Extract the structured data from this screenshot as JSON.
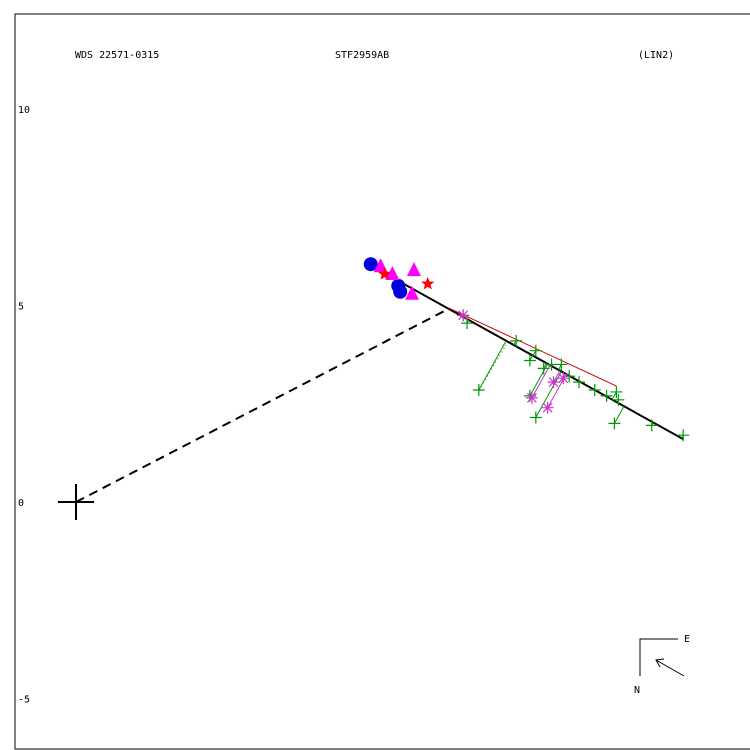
{
  "header": {
    "wds_id": "WDS 22571-0315",
    "discoverer": "STF2959AB",
    "fit": "(LIN2)"
  },
  "compass": {
    "east": "E",
    "north": "N"
  },
  "chart_data": {
    "type": "scatter",
    "title": "",
    "xlabel": "",
    "ylabel": "",
    "ylim": [
      -6.2,
      12.4
    ],
    "xlim": [
      -1.5,
      17.1
    ],
    "yticks": [
      {
        "value": 10,
        "label": "10"
      },
      {
        "value": 5,
        "label": "5"
      },
      {
        "value": 0,
        "label": "0"
      },
      {
        "value": -5,
        "label": "-5"
      }
    ],
    "primary": {
      "x": 0,
      "y": 0
    },
    "fit_line": {
      "x1": 7.35,
      "y1": 6.1,
      "x2": 15.45,
      "y2": 1.6
    },
    "closest_approach": {
      "x": 9.45,
      "y": 4.9
    },
    "series": [
      {
        "marker": "plus",
        "color": "#009900",
        "points": [
          [
            9.85,
            4.75
          ],
          [
            9.95,
            4.55
          ],
          [
            11.2,
            4.1
          ],
          [
            11.55,
            3.6
          ],
          [
            11.7,
            3.85
          ],
          [
            11.9,
            3.4
          ],
          [
            12.1,
            3.5
          ],
          [
            12.35,
            3.5
          ],
          [
            12.55,
            3.2
          ],
          [
            12.8,
            3.05
          ],
          [
            13.2,
            2.85
          ],
          [
            13.5,
            2.7
          ],
          [
            13.75,
            2.8
          ],
          [
            13.8,
            2.6
          ],
          [
            11.55,
            2.7
          ],
          [
            11.7,
            2.15
          ],
          [
            10.25,
            2.85
          ],
          [
            13.7,
            2.0
          ],
          [
            14.65,
            1.95
          ],
          [
            15.45,
            1.7
          ]
        ]
      },
      {
        "marker": "asterisk",
        "color": "#cc33cc",
        "points": [
          [
            9.85,
            4.75
          ],
          [
            11.6,
            2.65
          ],
          [
            12.0,
            2.4
          ],
          [
            12.15,
            3.05
          ],
          [
            12.4,
            3.15
          ]
        ]
      },
      {
        "marker": "circle",
        "color": "#0000dd",
        "points": [
          [
            7.5,
            6.05
          ],
          [
            8.2,
            5.5
          ],
          [
            8.25,
            5.35
          ]
        ]
      },
      {
        "marker": "triangle",
        "color": "#ff00ff",
        "points": [
          [
            7.75,
            6.0
          ],
          [
            8.05,
            5.8
          ],
          [
            8.6,
            5.9
          ],
          [
            8.55,
            5.3
          ]
        ]
      },
      {
        "marker": "star",
        "color": "#ff0000",
        "points": [
          [
            7.85,
            5.8
          ],
          [
            8.95,
            5.55
          ]
        ]
      }
    ]
  }
}
